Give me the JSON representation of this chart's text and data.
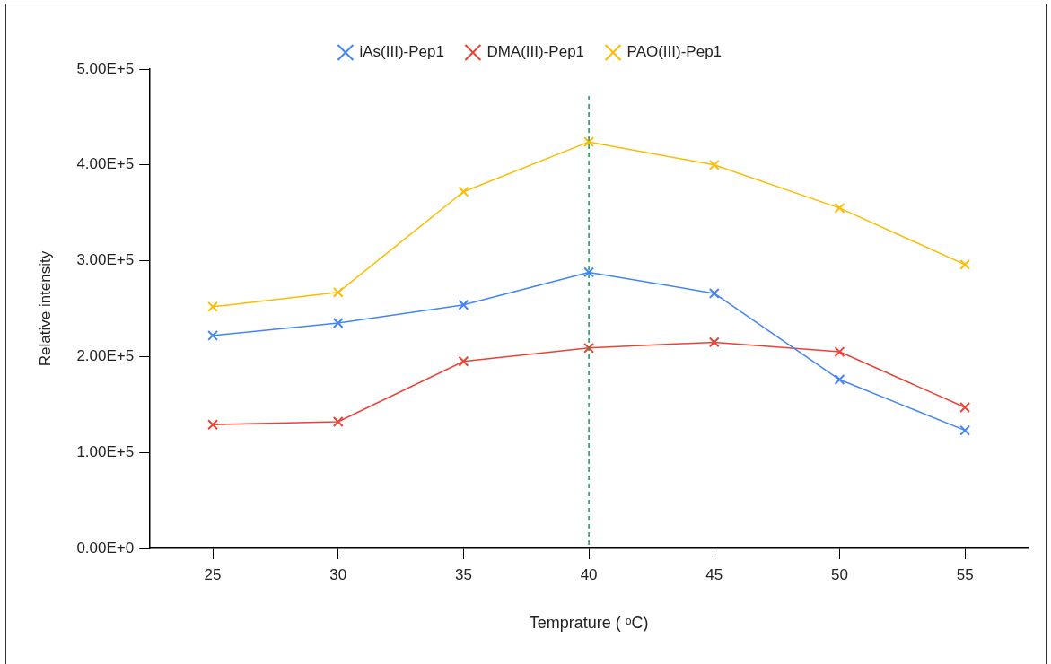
{
  "chart_data": {
    "type": "line",
    "xlabel": "Temprature ( ᵒC)",
    "ylabel": "Relative intensity",
    "x": [
      25,
      30,
      35,
      40,
      45,
      50,
      55
    ],
    "series": [
      {
        "name": "iAs(III)-Pep1",
        "color": "#4285f4",
        "values": [
          222000,
          235000,
          254000,
          288000,
          266000,
          176000,
          123000
        ]
      },
      {
        "name": "DMA(III)-Pep1",
        "color": "#ea4335",
        "values": [
          129000,
          132000,
          195000,
          209000,
          215000,
          205000,
          147000
        ]
      },
      {
        "name": "PAO(III)-Pep1",
        "color": "#fbbc04",
        "values": [
          252000,
          267000,
          372000,
          424000,
          400000,
          355000,
          296000
        ]
      }
    ],
    "xlim": [
      22.5,
      57.5
    ],
    "xticks": [
      25,
      30,
      35,
      40,
      45,
      50,
      55
    ],
    "ylim": [
      0,
      500000
    ],
    "yticks": [
      {
        "value": 0,
        "label": "0.00E+0"
      },
      {
        "value": 100000,
        "label": "1.00E+5"
      },
      {
        "value": 200000,
        "label": "2.00E+5"
      },
      {
        "value": 300000,
        "label": "3.00E+5"
      },
      {
        "value": 400000,
        "label": "4.00E+5"
      },
      {
        "value": 500000,
        "label": "5.00E+5"
      }
    ],
    "ref_lines": [
      {
        "axis": "x",
        "value": 40,
        "color": "#0f9d58",
        "line_style": "dashed"
      }
    ],
    "grid": false,
    "legend": "top",
    "marker": "cross",
    "line_style": "solid"
  }
}
